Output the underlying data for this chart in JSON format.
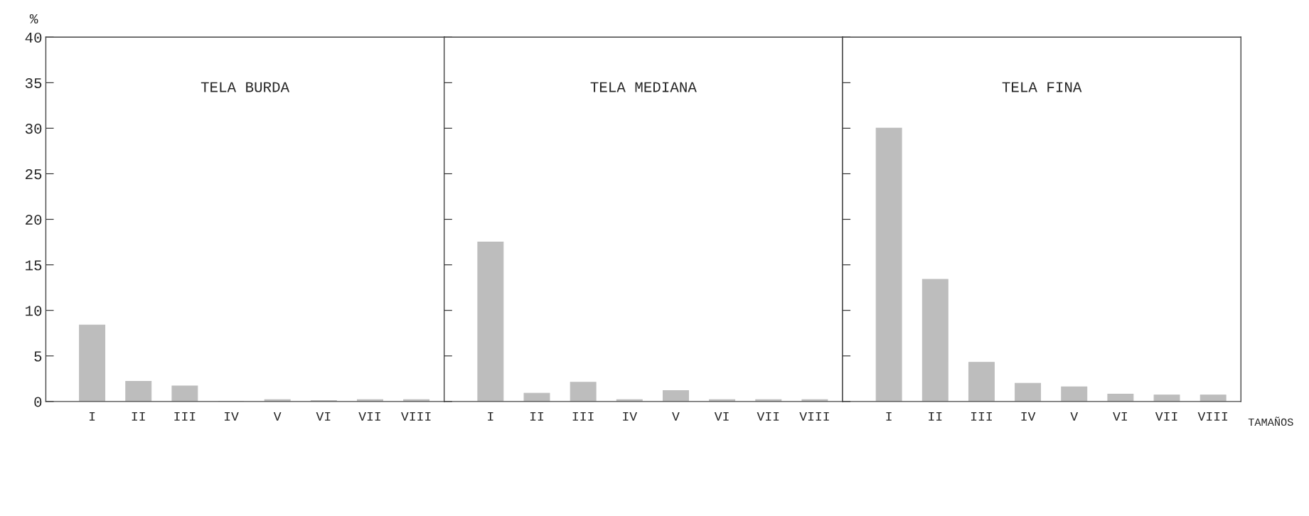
{
  "chart_data": [
    {
      "type": "bar",
      "title": "TELA BURDA",
      "ylabel": "%",
      "categories": [
        "I",
        "II",
        "III",
        "IV",
        "V",
        "VI",
        "VII",
        "VIII"
      ],
      "values": [
        8.4,
        2.2,
        1.7,
        0,
        0.2,
        0.1,
        0.2,
        0.2
      ],
      "color": "#bdbdbd",
      "ylim": [
        0,
        40
      ],
      "yticks": [
        0,
        5,
        10,
        15,
        20,
        25,
        30,
        35,
        40
      ],
      "grid": false,
      "legend": false
    },
    {
      "type": "bar",
      "title": "TELA MEDIANA",
      "categories": [
        "I",
        "II",
        "III",
        "IV",
        "V",
        "VI",
        "VII",
        "VIII"
      ],
      "values": [
        17.5,
        0.9,
        2.1,
        0.2,
        1.2,
        0.2,
        0.2,
        0.2
      ],
      "color": "#bdbdbd",
      "ylim": [
        0,
        40
      ],
      "yticks": [
        0,
        5,
        10,
        15,
        20,
        25,
        30,
        35,
        40
      ],
      "tick_labels": "x",
      "grid": false,
      "legend": false
    },
    {
      "type": "bar",
      "title": "TELA FINA",
      "xlabel": "TAMAÑOS",
      "categories": [
        "I",
        "II",
        "III",
        "IV",
        "V",
        "VI",
        "VII",
        "VIII"
      ],
      "values": [
        30,
        13.4,
        4.3,
        2.0,
        1.6,
        0.8,
        0.7,
        0.7
      ],
      "color": "#bdbdbd",
      "ylim": [
        0,
        40
      ],
      "yticks": [
        0,
        5,
        10,
        15,
        20,
        25,
        30,
        35,
        40
      ],
      "tick_labels": "x",
      "grid": false,
      "legend": false
    }
  ]
}
